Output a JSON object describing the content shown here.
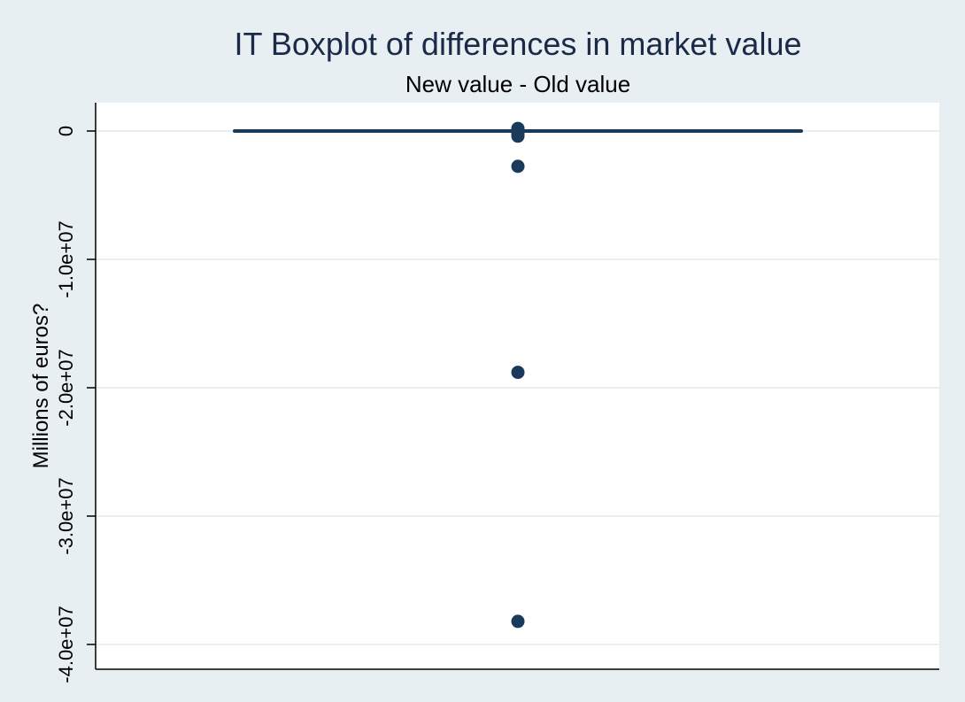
{
  "chart_data": {
    "type": "boxplot",
    "title": "IT Boxplot of differences in market value",
    "subtitle": "New value - Old value",
    "ylabel": "Millions of euros?",
    "xlabel": "",
    "ylim": [
      -41000000,
      2200000
    ],
    "yticks": [
      {
        "value": 0,
        "label": "0"
      },
      {
        "value": -10000000,
        "label": "-1.0e+07"
      },
      {
        "value": -20000000,
        "label": "-2.0e+07"
      },
      {
        "value": -30000000,
        "label": "-3.0e+07"
      },
      {
        "value": -40000000,
        "label": "-4.0e+07"
      }
    ],
    "grid": true,
    "box": {
      "q1": 0,
      "median": 0,
      "q3": 0,
      "whisker_low": 0,
      "whisker_high": 0
    },
    "outliers": [
      200000,
      0,
      -200000,
      -400000,
      -2750000,
      -18800000,
      -38200000
    ],
    "colors": {
      "box": "#1a3a5c",
      "background": "#e8eff2",
      "plot_bg": "#ffffff",
      "grid": "#e8eff2",
      "title": "#1a2a48"
    }
  }
}
